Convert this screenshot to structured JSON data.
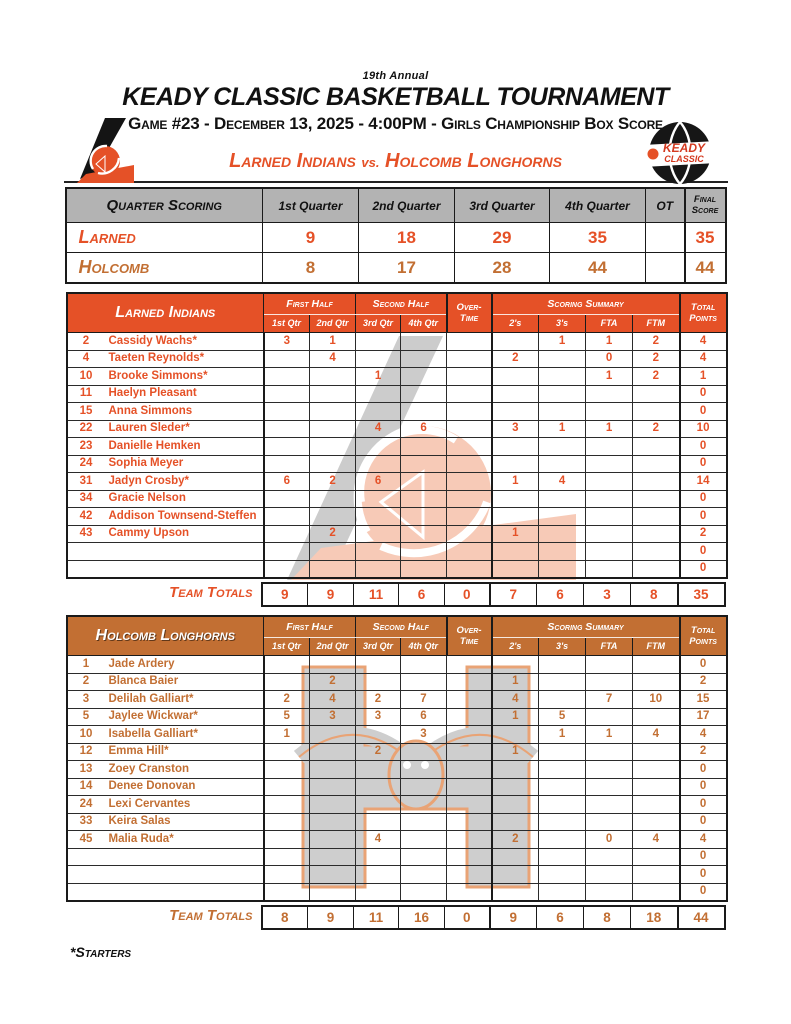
{
  "header": {
    "annual_line": "19th Annual",
    "title": "KEADY CLASSIC BASKETBALL TOURNAMENT",
    "game_info": "Game #23 - December 13, 2025 - 4:00PM - Girls Championship Box Score",
    "matchup": {
      "team1": "Larned Indians",
      "vs": "vs.",
      "team2": "Holcomb Longhorns"
    },
    "keady_logo_top": "KEADY",
    "keady_logo_bottom": "CLASSIC"
  },
  "colors": {
    "larned_orange": "#E55127",
    "holcomb_orange": "#C26F33",
    "header_gray": "#B3B3B3"
  },
  "quarter_scoring": {
    "title": "Quarter Scoring",
    "columns": [
      "1st Quarter",
      "2nd Quarter",
      "3rd Quarter",
      "4th Quarter",
      "OT",
      "Final Score"
    ],
    "rows": [
      {
        "team": "Larned",
        "theme": "larned",
        "values": [
          "9",
          "18",
          "29",
          "35",
          "",
          "35"
        ]
      },
      {
        "team": "Holcomb",
        "theme": "holcomb",
        "values": [
          "8",
          "17",
          "28",
          "44",
          "",
          "44"
        ]
      }
    ]
  },
  "column_headers": {
    "first_half": "First Half",
    "second_half": "Second Half",
    "overtime": "Over-Time",
    "scoring_summary": "Scoring Summary",
    "total_points": "Total Points",
    "quarters": [
      "1st Qtr",
      "2nd Qtr",
      "3rd Qtr",
      "4th Qtr"
    ],
    "summary": [
      "2's",
      "3's",
      "FTA",
      "FTM"
    ]
  },
  "larned": {
    "team_name": "Larned Indians",
    "players": [
      [
        "2",
        "Cassidy Wachs*",
        "3",
        "1",
        "",
        "",
        "",
        "",
        "1",
        "1",
        "2",
        "4"
      ],
      [
        "4",
        "Taeten Reynolds*",
        "",
        "4",
        "",
        "",
        "",
        "2",
        "",
        "0",
        "2",
        "4"
      ],
      [
        "10",
        "Brooke Simmons*",
        "",
        "",
        "1",
        "",
        "",
        "",
        "",
        "1",
        "2",
        "1"
      ],
      [
        "11",
        "Haelyn Pleasant",
        "",
        "",
        "",
        "",
        "",
        "",
        "",
        "",
        "",
        "0"
      ],
      [
        "15",
        "Anna Simmons",
        "",
        "",
        "",
        "",
        "",
        "",
        "",
        "",
        "",
        "0"
      ],
      [
        "22",
        "Lauren Sleder*",
        "",
        "",
        "4",
        "6",
        "",
        "3",
        "1",
        "1",
        "2",
        "10"
      ],
      [
        "23",
        "Danielle Hemken",
        "",
        "",
        "",
        "",
        "",
        "",
        "",
        "",
        "",
        "0"
      ],
      [
        "24",
        "Sophia Meyer",
        "",
        "",
        "",
        "",
        "",
        "",
        "",
        "",
        "",
        "0"
      ],
      [
        "31",
        "Jadyn Crosby*",
        "6",
        "2",
        "6",
        "",
        "",
        "1",
        "4",
        "",
        "",
        "14"
      ],
      [
        "34",
        "Gracie Nelson",
        "",
        "",
        "",
        "",
        "",
        "",
        "",
        "",
        "",
        "0"
      ],
      [
        "42",
        "Addison Townsend-Steffen",
        "",
        "",
        "",
        "",
        "",
        "",
        "",
        "",
        "",
        "0"
      ],
      [
        "43",
        "Cammy Upson",
        "",
        "2",
        "",
        "",
        "",
        "1",
        "",
        "",
        "",
        "2"
      ],
      [
        "",
        "",
        "",
        "",
        "",
        "",
        "",
        "",
        "",
        "",
        "",
        "0"
      ],
      [
        "",
        "",
        "",
        "",
        "",
        "",
        "",
        "",
        "",
        "",
        "",
        "0"
      ]
    ],
    "totals_label": "Team Totals",
    "totals": [
      "9",
      "9",
      "11",
      "6",
      "0",
      "7",
      "6",
      "3",
      "8",
      "35"
    ]
  },
  "holcomb": {
    "team_name": "Holcomb Longhorns",
    "players": [
      [
        "1",
        "Jade Ardery",
        "",
        "",
        "",
        "",
        "",
        "",
        "",
        "",
        "",
        "0"
      ],
      [
        "2",
        "Blanca Baier",
        "",
        "2",
        "",
        "",
        "",
        "1",
        "",
        "",
        "",
        "2"
      ],
      [
        "3",
        "Delilah Galliart*",
        "2",
        "4",
        "2",
        "7",
        "",
        "4",
        "",
        "7",
        "10",
        "15"
      ],
      [
        "5",
        "Jaylee Wickwar*",
        "5",
        "3",
        "3",
        "6",
        "",
        "1",
        "5",
        "",
        "",
        "17"
      ],
      [
        "10",
        "Isabella Galliart*",
        "1",
        "",
        "",
        "3",
        "",
        "",
        "1",
        "1",
        "4",
        "4"
      ],
      [
        "12",
        "Emma Hill*",
        "",
        "",
        "2",
        "",
        "",
        "1",
        "",
        "",
        "",
        "2"
      ],
      [
        "13",
        "Zoey Cranston",
        "",
        "",
        "",
        "",
        "",
        "",
        "",
        "",
        "",
        "0"
      ],
      [
        "14",
        "Denee Donovan",
        "",
        "",
        "",
        "",
        "",
        "",
        "",
        "",
        "",
        "0"
      ],
      [
        "24",
        "Lexi Cervantes",
        "",
        "",
        "",
        "",
        "",
        "",
        "",
        "",
        "",
        "0"
      ],
      [
        "33",
        "Keira Salas",
        "",
        "",
        "",
        "",
        "",
        "",
        "",
        "",
        "",
        "0"
      ],
      [
        "45",
        "Malia Ruda*",
        "",
        "",
        "4",
        "",
        "",
        "2",
        "",
        "0",
        "4",
        "4"
      ],
      [
        "",
        "",
        "",
        "",
        "",
        "",
        "",
        "",
        "",
        "",
        "",
        "0"
      ],
      [
        "",
        "",
        "",
        "",
        "",
        "",
        "",
        "",
        "",
        "",
        "",
        "0"
      ],
      [
        "",
        "",
        "",
        "",
        "",
        "",
        "",
        "",
        "",
        "",
        "",
        "0"
      ]
    ],
    "totals_label": "Team Totals",
    "totals": [
      "8",
      "9",
      "11",
      "16",
      "0",
      "9",
      "6",
      "8",
      "18",
      "44"
    ]
  },
  "footnote": "*Starters"
}
